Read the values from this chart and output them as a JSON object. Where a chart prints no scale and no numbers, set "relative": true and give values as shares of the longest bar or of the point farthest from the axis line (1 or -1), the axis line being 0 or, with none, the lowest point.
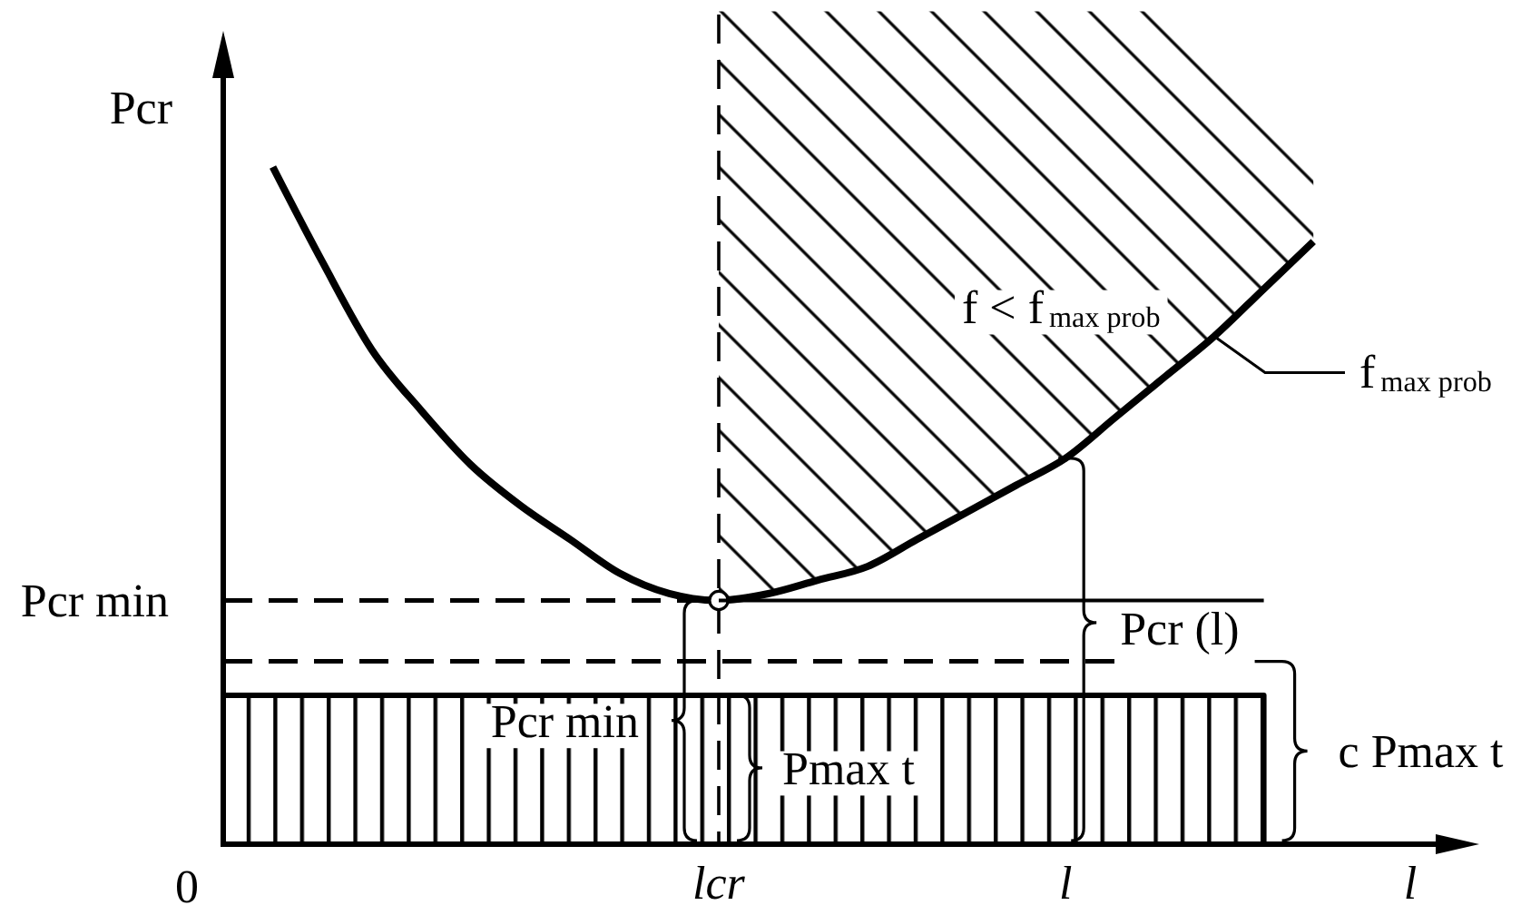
{
  "chart_data": {
    "type": "line",
    "relative": true,
    "ylabel": "Pcr",
    "xlabel": "l",
    "categories": [
      null,
      null,
      null,
      null,
      null,
      null,
      null,
      null,
      null,
      null,
      "lcr",
      null,
      null,
      null,
      null,
      null,
      null,
      "l",
      null,
      null,
      null,
      null,
      null,
      null,
      null,
      null
    ],
    "series": [
      {
        "type": "line",
        "color": "#000000",
        "values": [
          null,
          1,
          0.86,
          0.73,
          0.64,
          0.56,
          0.5,
          0.45,
          0.4,
          0.37,
          0.36,
          0.37,
          0.39,
          0.41,
          0.45,
          0.49,
          0.53,
          0.57,
          0.63,
          0.69,
          0.75,
          0.82,
          0.89,
          null,
          null,
          null
        ],
        "lower": [
          null,
          null,
          null,
          null,
          null,
          null,
          null,
          null,
          null,
          null,
          0.36,
          0.37,
          0.39,
          0.41,
          0.45,
          0.49,
          0.53,
          0.57,
          0.63,
          0.69,
          0.75,
          0.82,
          0.89,
          null,
          null,
          null
        ],
        "upper": [
          null,
          null,
          null,
          null,
          null,
          null,
          null,
          null,
          null,
          null,
          1.23,
          1.23,
          1.23,
          1.23,
          1.23,
          1.23,
          1.23,
          1.23,
          1.23,
          1.23,
          1.18,
          1.11,
          1.04,
          null,
          null,
          null
        ]
      },
      {
        "type": "scatter",
        "marker": "circle",
        "color": "#000000",
        "values": [
          null,
          null,
          null,
          null,
          null,
          null,
          null,
          null,
          null,
          null,
          0.36,
          null,
          null,
          null,
          null,
          null,
          null,
          null,
          null,
          null,
          null,
          null,
          null,
          null,
          null,
          null
        ]
      },
      {
        "type": "line",
        "line_style": "dashed",
        "color": "#000000",
        "values": [
          0.36,
          0.36,
          0.36,
          0.36,
          0.36,
          0.36,
          0.36,
          0.36,
          0.36,
          0.36,
          0.36,
          null,
          null,
          null,
          null,
          null,
          null,
          null,
          null,
          null,
          null,
          null,
          null,
          null,
          null,
          null
        ]
      },
      {
        "type": "line",
        "line_style": "solid",
        "color": "#000000",
        "values": [
          null,
          null,
          null,
          null,
          null,
          null,
          null,
          null,
          null,
          null,
          0.36,
          0.36,
          0.36,
          0.36,
          0.36,
          0.36,
          0.36,
          0.36,
          0.36,
          0.36,
          0.36,
          0.36,
          null,
          null,
          null,
          null
        ]
      },
      {
        "type": "line",
        "line_style": "dashed",
        "color": "#000000",
        "values": [
          0.27,
          0.27,
          0.27,
          0.27,
          0.27,
          0.27,
          0.27,
          0.27,
          0.27,
          0.27,
          0.27,
          0.27,
          0.27,
          0.27,
          0.27,
          0.27,
          0.27,
          0.27,
          0.27,
          null,
          null,
          null,
          null,
          null,
          null,
          null
        ]
      },
      {
        "type": "area",
        "color": "#000000",
        "values": [
          0.22,
          0.22,
          0.22,
          0.22,
          0.22,
          0.22,
          0.22,
          0.22,
          0.22,
          0.22,
          0.22,
          0.22,
          0.22,
          0.22,
          0.22,
          0.22,
          0.22,
          0.22,
          0.22,
          0.22,
          0.22,
          0.22,
          null,
          null,
          null,
          null
        ]
      }
    ],
    "ref_lines": [
      {
        "axis": "x",
        "value": "lcr",
        "line_style": "dashed"
      }
    ],
    "annotations": [
      "0",
      "f < f$_{max prob}$",
      "Pcr min",
      "f$_{max prob}$",
      {
        "text": "Pcr min",
        "x": "lcr",
        "y": 0.36
      },
      {
        "text": "Pmax t",
        "x": "lcr",
        "y": 0.22
      },
      "Pcr (l)",
      "c Pmax t"
    ]
  }
}
